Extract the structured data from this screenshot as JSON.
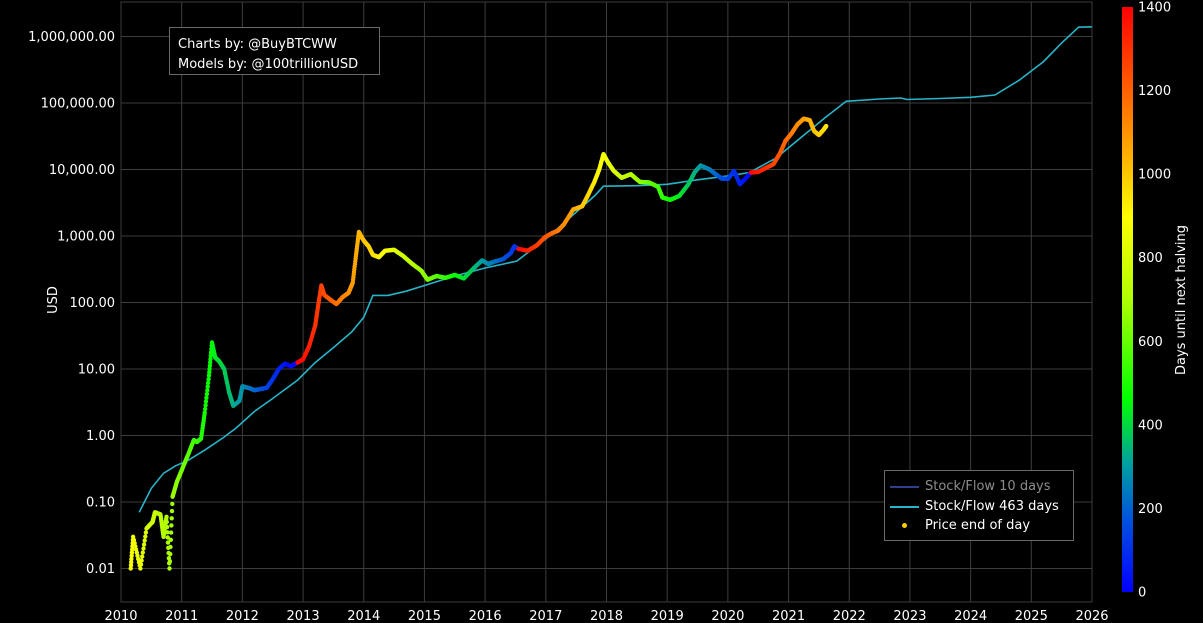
{
  "credits": {
    "line1": "Charts by: @BuyBTCWW",
    "line2": "Models by: @100trillionUSD"
  },
  "legend": {
    "items": [
      {
        "label": "Stock/Flow 10 days",
        "color": "#2e3f8f",
        "kind": "line",
        "dim": true
      },
      {
        "label": "Stock/Flow 463 days",
        "color": "#28b4c8",
        "kind": "line",
        "dim": false
      },
      {
        "label": "Price end of day",
        "color": "#ffcc00",
        "kind": "dot",
        "dim": false
      }
    ]
  },
  "colorbar": {
    "label": "Days until next halving",
    "min": 0,
    "max": 1400,
    "ticks": [
      "0",
      "200",
      "400",
      "600",
      "800",
      "1000",
      "1200",
      "1400"
    ]
  },
  "chart_data": {
    "type": "scatter",
    "ylabel": "USD",
    "yscale": "log",
    "ylim": [
      0.005,
      2000000
    ],
    "xlim": [
      2010,
      2026
    ],
    "x_ticks": [
      "2010",
      "2011",
      "2012",
      "2013",
      "2014",
      "2015",
      "2016",
      "2017",
      "2018",
      "2019",
      "2020",
      "2021",
      "2022",
      "2023",
      "2024",
      "2025",
      "2026"
    ],
    "y_ticks": [
      "0.01",
      "0.10",
      "1.00",
      "10.00",
      "100.00",
      "1,000.00",
      "10,000.00",
      "100,000.00",
      "1,000,000.00"
    ],
    "grid": true,
    "halvings": [
      2012.91,
      2016.52,
      2020.36,
      2024.3
    ],
    "series": [
      {
        "name": "Stock/Flow 463 days",
        "type": "line",
        "color": "#28b4c8",
        "points": [
          [
            2010.3,
            0.07
          ],
          [
            2010.5,
            0.16
          ],
          [
            2010.7,
            0.27
          ],
          [
            2010.9,
            0.35
          ],
          [
            2011.1,
            0.42
          ],
          [
            2011.4,
            0.62
          ],
          [
            2011.7,
            0.95
          ],
          [
            2011.9,
            1.3
          ],
          [
            2012.2,
            2.3
          ],
          [
            2012.5,
            3.6
          ],
          [
            2012.91,
            6.8
          ],
          [
            2013.2,
            12.5
          ],
          [
            2013.5,
            21
          ],
          [
            2013.8,
            36
          ],
          [
            2014.0,
            60
          ],
          [
            2014.15,
            128
          ],
          [
            2014.4,
            128
          ],
          [
            2014.7,
            148
          ],
          [
            2015.0,
            180
          ],
          [
            2015.5,
            250
          ],
          [
            2016.0,
            330
          ],
          [
            2016.52,
            420
          ],
          [
            2017.0,
            900
          ],
          [
            2017.4,
            1900
          ],
          [
            2017.8,
            4000
          ],
          [
            2017.95,
            5600
          ],
          [
            2018.5,
            5700
          ],
          [
            2019.0,
            6000
          ],
          [
            2019.5,
            7000
          ],
          [
            2020.0,
            8000
          ],
          [
            2020.36,
            9000
          ],
          [
            2020.8,
            15000
          ],
          [
            2021.2,
            30000
          ],
          [
            2021.6,
            60000
          ],
          [
            2021.95,
            106000
          ],
          [
            2022.5,
            115000
          ],
          [
            2022.85,
            119000
          ],
          [
            2022.95,
            113000
          ],
          [
            2023.5,
            117000
          ],
          [
            2024.0,
            122000
          ],
          [
            2024.4,
            132000
          ],
          [
            2024.8,
            220000
          ],
          [
            2025.2,
            420000
          ],
          [
            2025.5,
            800000
          ],
          [
            2025.78,
            1380000
          ],
          [
            2026.0,
            1400000
          ]
        ]
      },
      {
        "name": "Price end of day",
        "type": "scatter",
        "points": [
          [
            2010.16,
            0.01,
            880
          ],
          [
            2010.2,
            0.03,
            870
          ],
          [
            2010.32,
            0.01,
            840
          ],
          [
            2010.42,
            0.04,
            800
          ],
          [
            2010.52,
            0.05,
            775
          ],
          [
            2010.56,
            0.07,
            760
          ],
          [
            2010.65,
            0.065,
            735
          ],
          [
            2010.7,
            0.03,
            720
          ],
          [
            2010.75,
            0.06,
            705
          ],
          [
            2010.8,
            0.01,
            690
          ],
          [
            2010.85,
            0.12,
            680
          ],
          [
            2010.92,
            0.2,
            650
          ],
          [
            2011.0,
            0.3,
            625
          ],
          [
            2011.1,
            0.5,
            590
          ],
          [
            2011.2,
            0.85,
            555
          ],
          [
            2011.25,
            0.8,
            540
          ],
          [
            2011.32,
            0.9,
            515
          ],
          [
            2011.38,
            2.2,
            490
          ],
          [
            2011.45,
            8,
            470
          ],
          [
            2011.5,
            25,
            455
          ],
          [
            2011.55,
            15,
            435
          ],
          [
            2011.62,
            13,
            410
          ],
          [
            2011.7,
            10,
            385
          ],
          [
            2011.78,
            4.5,
            360
          ],
          [
            2011.85,
            2.8,
            335
          ],
          [
            2011.95,
            3.3,
            300
          ],
          [
            2012.0,
            5.5,
            285
          ],
          [
            2012.1,
            5.2,
            250
          ],
          [
            2012.2,
            4.8,
            215
          ],
          [
            2012.3,
            5.0,
            180
          ],
          [
            2012.4,
            5.2,
            145
          ],
          [
            2012.5,
            7,
            110
          ],
          [
            2012.6,
            10,
            80
          ],
          [
            2012.7,
            12,
            45
          ],
          [
            2012.8,
            11,
            20
          ],
          [
            2012.91,
            12.5,
            1400
          ],
          [
            2013.0,
            14,
            1370
          ],
          [
            2013.1,
            22,
            1335
          ],
          [
            2013.2,
            45,
            1300
          ],
          [
            2013.25,
            90,
            1280
          ],
          [
            2013.3,
            180,
            1265
          ],
          [
            2013.35,
            130,
            1245
          ],
          [
            2013.45,
            110,
            1210
          ],
          [
            2013.55,
            95,
            1175
          ],
          [
            2013.65,
            120,
            1140
          ],
          [
            2013.75,
            140,
            1105
          ],
          [
            2013.82,
            200,
            1080
          ],
          [
            2013.87,
            500,
            1060
          ],
          [
            2013.92,
            1150,
            1040
          ],
          [
            2014.0,
            850,
            1015
          ],
          [
            2014.08,
            700,
            985
          ],
          [
            2014.15,
            520,
            960
          ],
          [
            2014.25,
            480,
            925
          ],
          [
            2014.35,
            600,
            890
          ],
          [
            2014.5,
            620,
            835
          ],
          [
            2014.65,
            500,
            780
          ],
          [
            2014.8,
            380,
            725
          ],
          [
            2014.95,
            300,
            670
          ],
          [
            2015.05,
            220,
            635
          ],
          [
            2015.2,
            250,
            585
          ],
          [
            2015.35,
            235,
            530
          ],
          [
            2015.5,
            260,
            475
          ],
          [
            2015.65,
            230,
            420
          ],
          [
            2015.8,
            320,
            365
          ],
          [
            2015.95,
            430,
            310
          ],
          [
            2016.05,
            380,
            275
          ],
          [
            2016.15,
            410,
            240
          ],
          [
            2016.3,
            450,
            185
          ],
          [
            2016.42,
            550,
            140
          ],
          [
            2016.48,
            700,
            110
          ],
          [
            2016.55,
            640,
            1390
          ],
          [
            2016.7,
            600,
            1335
          ],
          [
            2016.85,
            720,
            1280
          ],
          [
            2016.98,
            950,
            1235
          ],
          [
            2017.1,
            1100,
            1190
          ],
          [
            2017.2,
            1200,
            1155
          ],
          [
            2017.3,
            1500,
            1115
          ],
          [
            2017.45,
            2500,
            1065
          ],
          [
            2017.6,
            2800,
            1010
          ],
          [
            2017.7,
            4200,
            975
          ],
          [
            2017.8,
            6500,
            935
          ],
          [
            2017.88,
            10000,
            905
          ],
          [
            2017.95,
            17000,
            880
          ],
          [
            2018.02,
            13000,
            855
          ],
          [
            2018.12,
            9500,
            820
          ],
          [
            2018.25,
            7500,
            770
          ],
          [
            2018.4,
            8500,
            720
          ],
          [
            2018.55,
            6500,
            665
          ],
          [
            2018.7,
            6400,
            610
          ],
          [
            2018.85,
            5500,
            555
          ],
          [
            2018.92,
            3800,
            530
          ],
          [
            2019.05,
            3500,
            485
          ],
          [
            2019.2,
            4000,
            430
          ],
          [
            2019.35,
            6000,
            375
          ],
          [
            2019.45,
            9000,
            340
          ],
          [
            2019.55,
            11500,
            300
          ],
          [
            2019.7,
            10000,
            250
          ],
          [
            2019.8,
            8500,
            210
          ],
          [
            2019.9,
            7300,
            175
          ],
          [
            2020.0,
            7200,
            140
          ],
          [
            2020.1,
            9500,
            105
          ],
          [
            2020.2,
            6000,
            70
          ],
          [
            2020.3,
            7500,
            30
          ],
          [
            2020.38,
            9000,
            1395
          ],
          [
            2020.5,
            9200,
            1350
          ],
          [
            2020.62,
            10500,
            1310
          ],
          [
            2020.75,
            12000,
            1260
          ],
          [
            2020.85,
            17000,
            1225
          ],
          [
            2020.95,
            27000,
            1190
          ],
          [
            2021.05,
            35000,
            1150
          ],
          [
            2021.15,
            48000,
            1115
          ],
          [
            2021.25,
            58000,
            1080
          ],
          [
            2021.35,
            55000,
            1045
          ],
          [
            2021.42,
            38000,
            1020
          ],
          [
            2021.5,
            33000,
            990
          ],
          [
            2021.58,
            40000,
            960
          ],
          [
            2021.62,
            45000,
            945
          ]
        ]
      }
    ]
  }
}
